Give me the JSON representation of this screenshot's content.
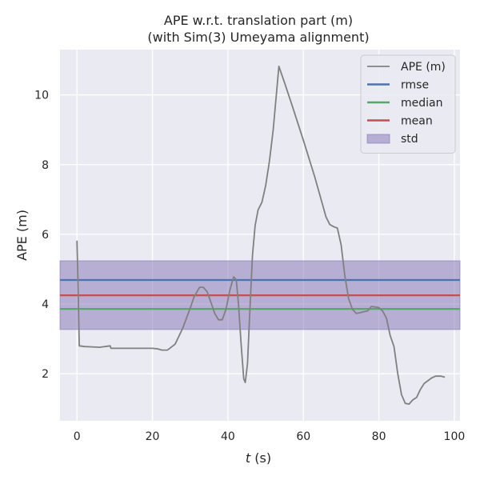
{
  "chart_data": {
    "type": "line",
    "title_line1": "APE w.r.t. translation part (m)",
    "title_line2": "(with Sim(3) Umeyama alignment)",
    "xlabel_var": "t",
    "xlabel_unit": " (s)",
    "ylabel": "APE (m)",
    "xlim": [
      -4.5,
      101.5
    ],
    "ylim": [
      0.65,
      11.3
    ],
    "xticks": [
      0,
      20,
      40,
      60,
      80,
      100
    ],
    "yticks": [
      2,
      4,
      6,
      8,
      10
    ],
    "grid": true,
    "legend_position": "top-right",
    "series": [
      {
        "name": "APE (m)",
        "color": "#808080",
        "points": [
          [
            0.0,
            5.82
          ],
          [
            0.3,
            4.5
          ],
          [
            0.6,
            2.8
          ],
          [
            2,
            2.78
          ],
          [
            4,
            2.77
          ],
          [
            6,
            2.76
          ],
          [
            8,
            2.79
          ],
          [
            8.8,
            2.8
          ],
          [
            9,
            2.73
          ],
          [
            12,
            2.73
          ],
          [
            16,
            2.73
          ],
          [
            20,
            2.73
          ],
          [
            21.5,
            2.71
          ],
          [
            22.5,
            2.68
          ],
          [
            24,
            2.68
          ],
          [
            26,
            2.85
          ],
          [
            28,
            3.3
          ],
          [
            30,
            3.88
          ],
          [
            31,
            4.2
          ],
          [
            32.5,
            4.48
          ],
          [
            33.5,
            4.48
          ],
          [
            34.5,
            4.35
          ],
          [
            35.5,
            4.05
          ],
          [
            36.5,
            3.73
          ],
          [
            37.5,
            3.55
          ],
          [
            38.5,
            3.55
          ],
          [
            39.5,
            3.85
          ],
          [
            40.5,
            4.4
          ],
          [
            41.5,
            4.78
          ],
          [
            42.2,
            4.7
          ],
          [
            42.8,
            4.0
          ],
          [
            43.5,
            2.85
          ],
          [
            44.2,
            1.85
          ],
          [
            44.6,
            1.75
          ],
          [
            45.2,
            2.3
          ],
          [
            45.8,
            3.8
          ],
          [
            46.5,
            5.4
          ],
          [
            47.2,
            6.25
          ],
          [
            48,
            6.7
          ],
          [
            49,
            6.92
          ],
          [
            50,
            7.4
          ],
          [
            51,
            8.1
          ],
          [
            52,
            9.0
          ],
          [
            53,
            10.2
          ],
          [
            53.5,
            10.82
          ],
          [
            55,
            10.35
          ],
          [
            57,
            9.7
          ],
          [
            60,
            8.7
          ],
          [
            63,
            7.65
          ],
          [
            66,
            6.5
          ],
          [
            67,
            6.28
          ],
          [
            68,
            6.22
          ],
          [
            69,
            6.18
          ],
          [
            70,
            5.7
          ],
          [
            71,
            4.8
          ],
          [
            72,
            4.15
          ],
          [
            73,
            3.85
          ],
          [
            74,
            3.73
          ],
          [
            75,
            3.75
          ],
          [
            76,
            3.78
          ],
          [
            77,
            3.8
          ],
          [
            78,
            3.93
          ],
          [
            80,
            3.9
          ],
          [
            81,
            3.8
          ],
          [
            82,
            3.6
          ],
          [
            83,
            3.1
          ],
          [
            84,
            2.78
          ],
          [
            85,
            2.0
          ],
          [
            86,
            1.4
          ],
          [
            87,
            1.15
          ],
          [
            88,
            1.13
          ],
          [
            89,
            1.25
          ],
          [
            90,
            1.32
          ],
          [
            91,
            1.55
          ],
          [
            92,
            1.72
          ],
          [
            94,
            1.88
          ],
          [
            95,
            1.93
          ],
          [
            96.5,
            1.93
          ],
          [
            97.5,
            1.9
          ]
        ]
      },
      {
        "name": "rmse",
        "color": "#4c72b0",
        "value": 4.69
      },
      {
        "name": "median",
        "color": "#55a868",
        "value": 3.86
      },
      {
        "name": "mean",
        "color": "#c44e52",
        "value": 4.25
      },
      {
        "name": "std",
        "color": "#8172b3",
        "range": [
          3.27,
          5.24
        ]
      }
    ]
  }
}
